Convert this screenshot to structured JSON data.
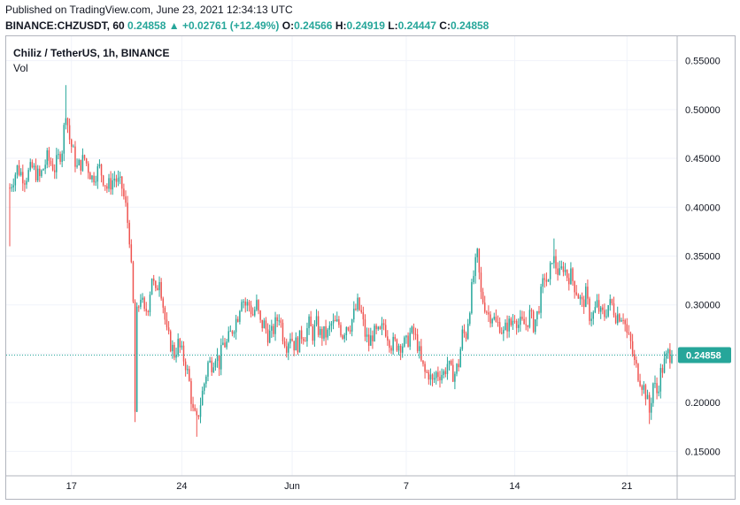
{
  "header": {
    "published": "Published on TradingView.com, June 23, 2021 12:34:13 UTC",
    "symbol": "BINANCE:CHZUSDT, 60",
    "last": "0.24858",
    "change": "▲ +0.02761 (+12.49%)",
    "o_label": "O:",
    "o_value": "0.24566",
    "h_label": "H:",
    "h_value": "0.24919",
    "l_label": "L:",
    "l_value": "0.24447",
    "c_label": "C:",
    "c_value": "0.24858"
  },
  "legend": {
    "title": "Chiliz / TetherUS, 1h, BINANCE",
    "vol": "Vol"
  },
  "colors": {
    "up": "#26a69a",
    "down": "#ef5350",
    "grid": "#f0f3fa",
    "axis_text": "#131722",
    "last_price_bg": "#26a69a"
  },
  "chart_data": {
    "type": "candlestick",
    "y_ticks": [
      "0.55000",
      "0.50000",
      "0.45000",
      "0.40000",
      "0.35000",
      "0.30000",
      "0.25000",
      "0.20000",
      "0.15000"
    ],
    "x_ticks": [
      "17",
      "24",
      "Jun",
      "7",
      "14",
      "21"
    ],
    "ylim": [
      0.125,
      0.575
    ],
    "last_price": "0.24858",
    "last_value": 0.24858,
    "grid": true,
    "close_path": [
      [
        0,
        0.42
      ],
      [
        4,
        0.44
      ],
      [
        8,
        0.43
      ],
      [
        12,
        0.44
      ],
      [
        16,
        0.43
      ],
      [
        20,
        0.45
      ],
      [
        24,
        0.44
      ],
      [
        28,
        0.46
      ],
      [
        30,
        0.5
      ],
      [
        32,
        0.47
      ],
      [
        36,
        0.44
      ],
      [
        40,
        0.45
      ],
      [
        44,
        0.43
      ],
      [
        48,
        0.44
      ],
      [
        52,
        0.42
      ],
      [
        56,
        0.43
      ],
      [
        60,
        0.42
      ],
      [
        62,
        0.4
      ],
      [
        64,
        0.37
      ],
      [
        66,
        0.3
      ],
      [
        67,
        0.19
      ],
      [
        68,
        0.29
      ],
      [
        70,
        0.31
      ],
      [
        72,
        0.29
      ],
      [
        74,
        0.3
      ],
      [
        76,
        0.33
      ],
      [
        78,
        0.31
      ],
      [
        80,
        0.33
      ],
      [
        82,
        0.3
      ],
      [
        84,
        0.27
      ],
      [
        86,
        0.26
      ],
      [
        88,
        0.25
      ],
      [
        90,
        0.26
      ],
      [
        92,
        0.25
      ],
      [
        94,
        0.24
      ],
      [
        96,
        0.22
      ],
      [
        98,
        0.19
      ],
      [
        100,
        0.18
      ],
      [
        102,
        0.2
      ],
      [
        104,
        0.22
      ],
      [
        106,
        0.24
      ],
      [
        108,
        0.24
      ],
      [
        110,
        0.25
      ],
      [
        112,
        0.24
      ],
      [
        114,
        0.26
      ],
      [
        116,
        0.26
      ],
      [
        118,
        0.27
      ],
      [
        120,
        0.28
      ],
      [
        122,
        0.29
      ],
      [
        124,
        0.31
      ],
      [
        126,
        0.3
      ],
      [
        128,
        0.3
      ],
      [
        130,
        0.29
      ],
      [
        132,
        0.3
      ],
      [
        134,
        0.28
      ],
      [
        136,
        0.28
      ],
      [
        138,
        0.27
      ],
      [
        140,
        0.27
      ],
      [
        142,
        0.28
      ],
      [
        144,
        0.29
      ],
      [
        146,
        0.27
      ],
      [
        148,
        0.26
      ],
      [
        150,
        0.27
      ],
      [
        152,
        0.26
      ],
      [
        154,
        0.26
      ],
      [
        156,
        0.27
      ],
      [
        158,
        0.27
      ],
      [
        160,
        0.28
      ],
      [
        162,
        0.27
      ],
      [
        164,
        0.28
      ],
      [
        166,
        0.27
      ],
      [
        168,
        0.27
      ],
      [
        170,
        0.27
      ],
      [
        172,
        0.28
      ],
      [
        174,
        0.28
      ],
      [
        176,
        0.28
      ],
      [
        178,
        0.27
      ],
      [
        180,
        0.28
      ],
      [
        182,
        0.28
      ],
      [
        184,
        0.29
      ],
      [
        186,
        0.3
      ],
      [
        188,
        0.29
      ],
      [
        190,
        0.27
      ],
      [
        192,
        0.26
      ],
      [
        194,
        0.27
      ],
      [
        196,
        0.27
      ],
      [
        198,
        0.27
      ],
      [
        200,
        0.28
      ],
      [
        202,
        0.27
      ],
      [
        204,
        0.26
      ],
      [
        206,
        0.26
      ],
      [
        208,
        0.26
      ],
      [
        210,
        0.26
      ],
      [
        212,
        0.26
      ],
      [
        214,
        0.27
      ],
      [
        216,
        0.27
      ],
      [
        218,
        0.26
      ],
      [
        220,
        0.24
      ],
      [
        222,
        0.23
      ],
      [
        224,
        0.23
      ],
      [
        226,
        0.22
      ],
      [
        228,
        0.23
      ],
      [
        230,
        0.23
      ],
      [
        232,
        0.23
      ],
      [
        234,
        0.24
      ],
      [
        236,
        0.23
      ],
      [
        238,
        0.23
      ],
      [
        240,
        0.24
      ],
      [
        242,
        0.27
      ],
      [
        244,
        0.27
      ],
      [
        246,
        0.3
      ],
      [
        248,
        0.33
      ],
      [
        250,
        0.35
      ],
      [
        252,
        0.31
      ],
      [
        254,
        0.3
      ],
      [
        256,
        0.29
      ],
      [
        258,
        0.29
      ],
      [
        260,
        0.28
      ],
      [
        262,
        0.28
      ],
      [
        264,
        0.27
      ],
      [
        266,
        0.28
      ],
      [
        268,
        0.28
      ],
      [
        270,
        0.29
      ],
      [
        272,
        0.28
      ],
      [
        274,
        0.28
      ],
      [
        276,
        0.28
      ],
      [
        278,
        0.29
      ],
      [
        280,
        0.28
      ],
      [
        282,
        0.29
      ],
      [
        284,
        0.31
      ],
      [
        286,
        0.33
      ],
      [
        288,
        0.32
      ],
      [
        290,
        0.35
      ],
      [
        292,
        0.34
      ],
      [
        294,
        0.33
      ],
      [
        296,
        0.34
      ],
      [
        298,
        0.33
      ],
      [
        300,
        0.33
      ],
      [
        302,
        0.32
      ],
      [
        304,
        0.31
      ],
      [
        306,
        0.3
      ],
      [
        308,
        0.31
      ],
      [
        310,
        0.29
      ],
      [
        312,
        0.29
      ],
      [
        314,
        0.3
      ],
      [
        316,
        0.29
      ],
      [
        318,
        0.29
      ],
      [
        320,
        0.3
      ],
      [
        322,
        0.3
      ],
      [
        324,
        0.29
      ],
      [
        326,
        0.29
      ],
      [
        328,
        0.29
      ],
      [
        330,
        0.27
      ],
      [
        332,
        0.26
      ],
      [
        334,
        0.24
      ],
      [
        336,
        0.23
      ],
      [
        338,
        0.22
      ],
      [
        340,
        0.21
      ],
      [
        342,
        0.19
      ],
      [
        344,
        0.22
      ],
      [
        346,
        0.21
      ],
      [
        348,
        0.23
      ],
      [
        350,
        0.24
      ],
      [
        352,
        0.25
      ],
      [
        354,
        0.24858
      ]
    ]
  }
}
